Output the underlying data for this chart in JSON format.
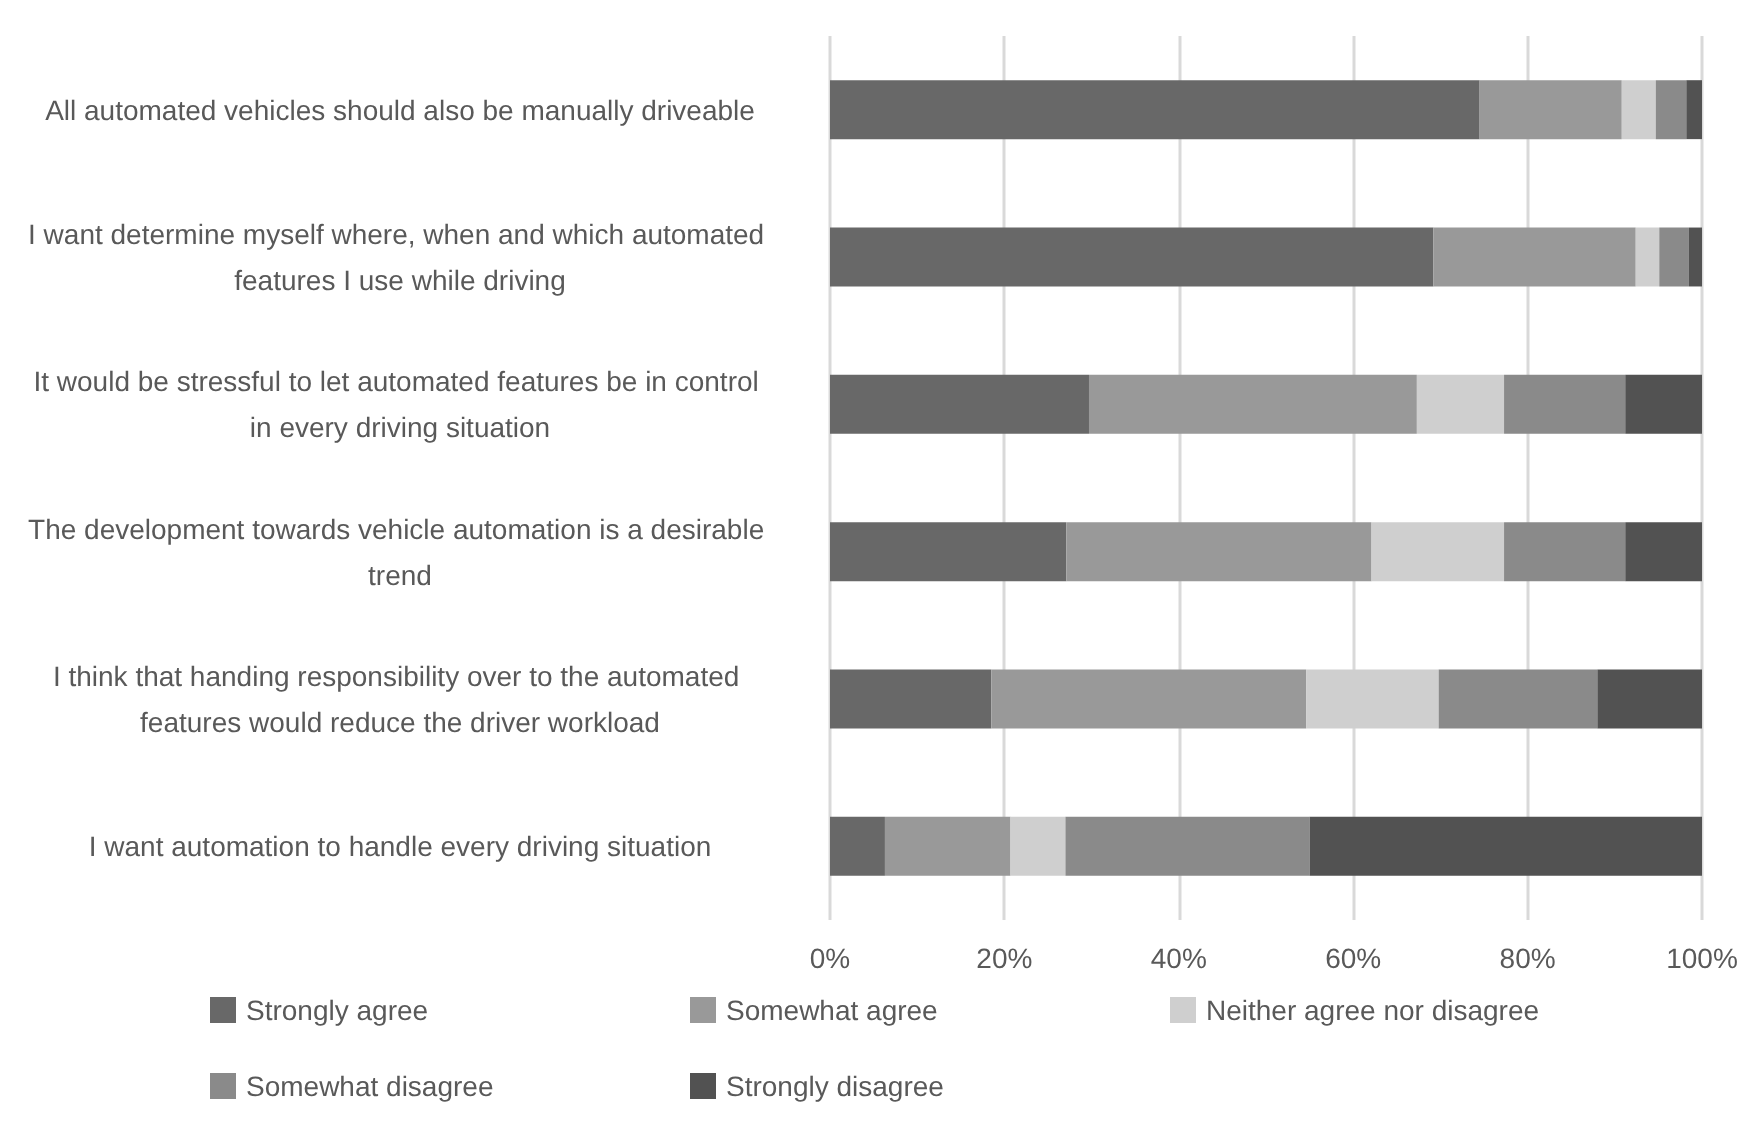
{
  "chart_data": {
    "type": "bar",
    "orientation": "horizontal",
    "stacked": true,
    "categories": [
      "All automated vehicles should also be manually driveable",
      "I want determine myself where, when and which automated features I use while driving",
      "It would be stressful to let automated features be in control in every driving situation",
      "The development towards vehicle automation is a desirable trend",
      "I think that handing responsibility over to the automated features would reduce the driver workload",
      "I want automation to handle every driving situation"
    ],
    "series": [
      {
        "name": "Strongly agree",
        "color": "#686868",
        "values": [
          74.5,
          69.2,
          29.7,
          27.1,
          18.5,
          6.3
        ]
      },
      {
        "name": "Somewhat agree",
        "color": "#999999",
        "values": [
          16.3,
          23.2,
          37.6,
          35.0,
          36.1,
          14.4
        ]
      },
      {
        "name": "Neither agree nor disagree",
        "color": "#cfcfcf",
        "values": [
          3.9,
          2.7,
          10.0,
          15.2,
          15.2,
          6.3
        ]
      },
      {
        "name": "Somewhat disagree",
        "color": "#8a8a8a",
        "values": [
          3.5,
          3.4,
          13.9,
          13.9,
          18.2,
          28.0
        ]
      },
      {
        "name": "Strongly disagree",
        "color": "#525252",
        "values": [
          1.8,
          1.5,
          8.8,
          8.8,
          12.0,
          45.0
        ]
      }
    ],
    "xlim": [
      0,
      100
    ],
    "xticks": [
      {
        "value": 0,
        "label": "0%"
      },
      {
        "value": 20,
        "label": "20%"
      },
      {
        "value": 40,
        "label": "40%"
      },
      {
        "value": 60,
        "label": "60%"
      },
      {
        "value": 80,
        "label": "80%"
      },
      {
        "value": 100,
        "label": "100%"
      }
    ],
    "grid": "x",
    "legend": "bottom"
  }
}
